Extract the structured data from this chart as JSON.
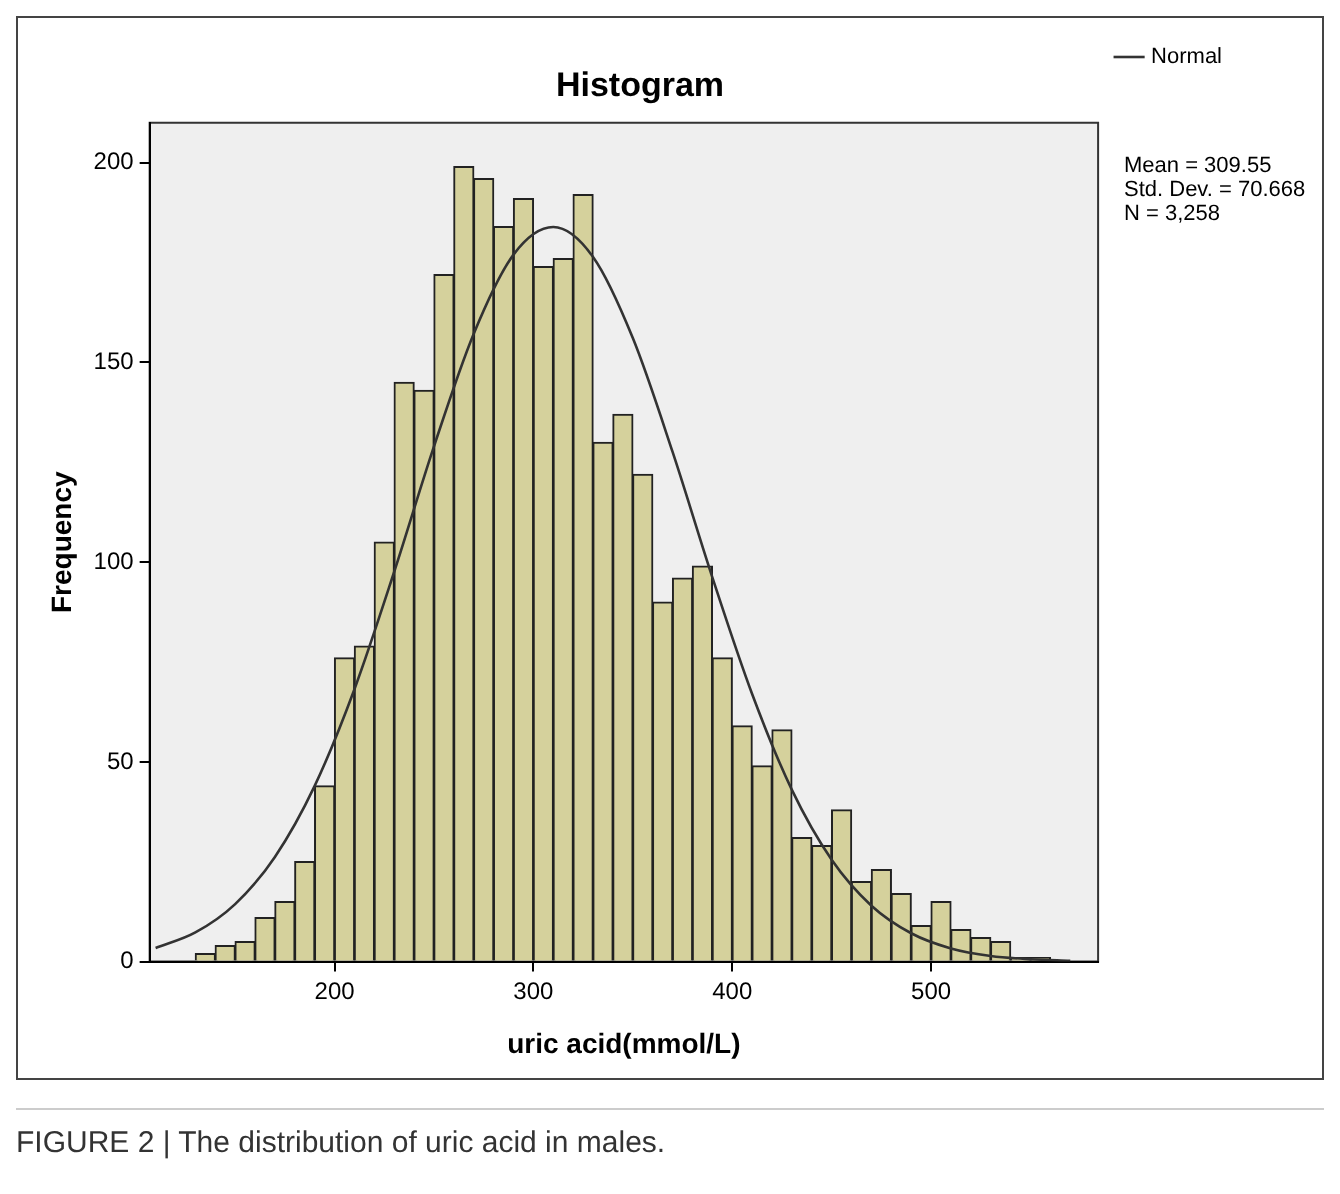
{
  "chart_data": {
    "type": "histogram",
    "title": "Histogram",
    "xlabel": "uric acid(mmol/L)",
    "ylabel": "Frequency",
    "xlim": [
      107,
      584
    ],
    "ylim": [
      0,
      210
    ],
    "xticks": [
      200,
      300,
      400,
      500
    ],
    "yticks": [
      0,
      50,
      100,
      150,
      200
    ],
    "legend": "top right",
    "grid": false,
    "marker": "none",
    "annotations": [
      "Mean = 309.55",
      "Std. Dev. = 70.668",
      "N = 3,258",
      "FIGURE 2 | The distribution of uric acid in males."
    ],
    "series": [
      {
        "color": "#d5d19c",
        "bins": [
          130,
          140,
          150,
          160,
          170,
          180,
          190,
          200,
          210,
          220,
          230,
          240,
          250,
          260,
          270,
          280,
          290,
          300,
          310,
          320,
          330,
          340,
          350,
          360,
          370,
          380,
          390,
          400,
          410,
          420,
          430,
          440,
          450,
          460,
          470,
          480,
          490,
          500,
          510,
          520,
          530,
          540,
          550,
          560
        ],
        "values": [
          2,
          4,
          5,
          11,
          15,
          25,
          44,
          76,
          79,
          105,
          145,
          143,
          172,
          199,
          196,
          184,
          191,
          174,
          176,
          192,
          130,
          137,
          122,
          90,
          96,
          99,
          76,
          59,
          49,
          58,
          31,
          29,
          38,
          20,
          23,
          17,
          9,
          15,
          8,
          6,
          5,
          1,
          1
        ]
      },
      {
        "type": "line",
        "name": "Normal",
        "color": "#333333",
        "x": [
          110,
          130,
          150,
          170,
          190,
          210,
          230,
          250,
          270,
          290,
          310,
          330,
          350,
          370,
          390,
          410,
          430,
          450,
          470,
          490,
          510,
          530,
          550,
          570
        ],
        "values": [
          3.4,
          7.3,
          14.4,
          26.2,
          44,
          68.2,
          97.6,
          129,
          157.2,
          177,
          183.9,
          176.4,
          156.1,
          127.6,
          96.2,
          67,
          43,
          25.5,
          14,
          7.1,
          3.3,
          1.4,
          0.6,
          0.2
        ]
      }
    ]
  }
}
